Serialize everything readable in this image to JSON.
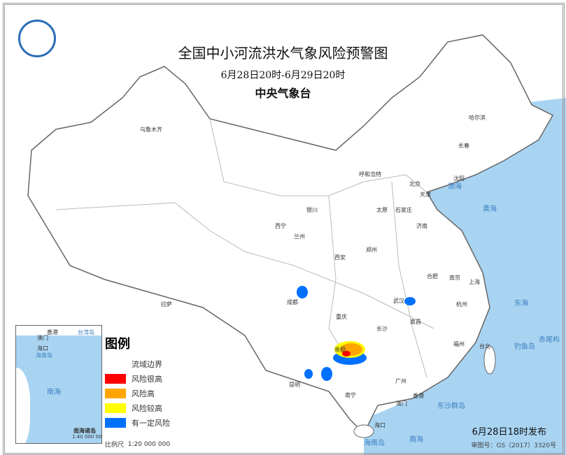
{
  "header": {
    "title": "全国中小河流洪水气象风险预警图",
    "period": "6月28日20时-6月29日20时",
    "agency": "中央气象台"
  },
  "cities": [
    "乌鲁木齐",
    "哈尔滨",
    "长春",
    "沈阳",
    "呼和浩特",
    "北京",
    "天津",
    "银川",
    "太原",
    "石家庄",
    "济南",
    "西宁",
    "兰州",
    "郑州",
    "西安",
    "合肥",
    "南京",
    "上海",
    "成都",
    "武汉",
    "杭州",
    "重庆",
    "长沙",
    "南昌",
    "福州",
    "台北",
    "贵阳",
    "昆明",
    "南宁",
    "广州",
    "香港",
    "澳门",
    "海口",
    "拉萨"
  ],
  "seas": [
    "渤海",
    "黄海",
    "东海",
    "南海",
    "钓鱼岛",
    "赤尾屿",
    "东沙群岛",
    "海南岛"
  ],
  "legend": {
    "title": "图例",
    "items": [
      {
        "label": "流域边界",
        "color": ""
      },
      {
        "label": "风险很高",
        "color": "#ff0000"
      },
      {
        "label": "风险高",
        "color": "#ffa500"
      },
      {
        "label": "风险较高",
        "color": "#ffff00"
      },
      {
        "label": "有一定风险",
        "color": "#0070ff"
      }
    ],
    "scale_label": "比例尺",
    "scale": "1:20 000 000"
  },
  "inset": {
    "labels": [
      "香港",
      "澳门",
      "台湾岛",
      "海口",
      "海南岛",
      "南海"
    ],
    "title": "南海诸岛",
    "scale": "1:40 000 000"
  },
  "footer": {
    "issued": "6月28日18时发布",
    "approval": "审图号：GS（2017）3320号"
  },
  "colors": {
    "sea": "#a8d4f2",
    "land": "#ffffff",
    "border": "#999999"
  }
}
